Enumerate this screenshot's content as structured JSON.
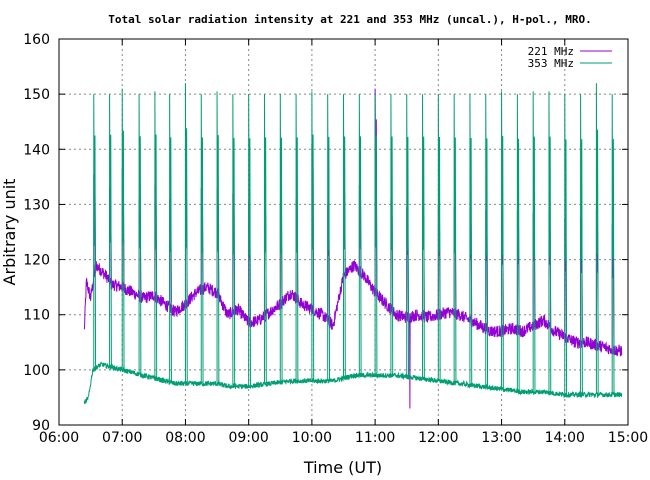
{
  "chart_data": {
    "type": "line",
    "title": "Total solar radiation intensity at 221 and 353 MHz (uncal.), H-pol., MRO.",
    "xlabel": "Time (UT)",
    "ylabel": "Arbitrary unit",
    "xlim": [
      "06:00",
      "15:00"
    ],
    "ylim": [
      90,
      160
    ],
    "xticks": [
      "06:00",
      "07:00",
      "08:00",
      "09:00",
      "10:00",
      "11:00",
      "12:00",
      "13:00",
      "14:00",
      "15:00"
    ],
    "yticks": [
      90,
      100,
      110,
      120,
      130,
      140,
      150,
      160
    ],
    "grid": true,
    "legend_position": "top-right",
    "series": [
      {
        "name": "221 MHz",
        "color": "#9400d3",
        "start": "06:24",
        "end": "14:54",
        "baseline": [
          [
            "06:24",
            107
          ],
          [
            "06:26",
            116
          ],
          [
            "06:30",
            113
          ],
          [
            "06:35",
            119
          ],
          [
            "06:40",
            118
          ],
          [
            "06:45",
            117
          ],
          [
            "06:50",
            115.5
          ],
          [
            "07:00",
            115
          ],
          [
            "07:10",
            114
          ],
          [
            "07:20",
            113
          ],
          [
            "07:30",
            113.5
          ],
          [
            "07:40",
            112
          ],
          [
            "07:50",
            110.5
          ],
          [
            "08:00",
            112
          ],
          [
            "08:10",
            114
          ],
          [
            "08:20",
            115
          ],
          [
            "08:30",
            114
          ],
          [
            "08:40",
            110
          ],
          [
            "08:50",
            111
          ],
          [
            "09:00",
            108.5
          ],
          [
            "09:10",
            109
          ],
          [
            "09:20",
            110.5
          ],
          [
            "09:30",
            112
          ],
          [
            "09:40",
            114
          ],
          [
            "09:50",
            112
          ],
          [
            "10:00",
            111
          ],
          [
            "10:10",
            110
          ],
          [
            "10:20",
            108
          ],
          [
            "10:30",
            117
          ],
          [
            "10:40",
            119
          ],
          [
            "10:50",
            117
          ],
          [
            "11:00",
            114
          ],
          [
            "11:10",
            112
          ],
          [
            "11:20",
            110
          ],
          [
            "11:30",
            109.5
          ],
          [
            "11:40",
            110
          ],
          [
            "11:50",
            109.5
          ],
          [
            "12:00",
            110
          ],
          [
            "12:10",
            110.5
          ],
          [
            "12:20",
            110
          ],
          [
            "12:30",
            109
          ],
          [
            "12:40",
            108
          ],
          [
            "12:50",
            107
          ],
          [
            "13:00",
            107
          ],
          [
            "13:10",
            107.5
          ],
          [
            "13:20",
            107
          ],
          [
            "13:30",
            108
          ],
          [
            "13:40",
            109
          ],
          [
            "13:50",
            107
          ],
          [
            "14:00",
            106
          ],
          [
            "14:10",
            105
          ],
          [
            "14:20",
            105
          ],
          [
            "14:30",
            104.5
          ],
          [
            "14:40",
            104
          ],
          [
            "14:50",
            103.5
          ],
          [
            "14:54",
            103.5
          ]
        ],
        "dips": [
          [
            "11:33",
            93
          ]
        ],
        "spikes": [
          [
            "06:33",
            135.5
          ],
          [
            "06:48",
            133
          ],
          [
            "07:00",
            136.5
          ],
          [
            "07:16",
            131
          ],
          [
            "07:31",
            133.5
          ],
          [
            "07:45",
            131
          ],
          [
            "08:00",
            134
          ],
          [
            "08:15",
            133
          ],
          [
            "08:30",
            133
          ],
          [
            "08:45",
            132
          ],
          [
            "09:00",
            130.5
          ],
          [
            "09:15",
            131.5
          ],
          [
            "09:30",
            130
          ],
          [
            "09:45",
            131
          ],
          [
            "10:00",
            141
          ],
          [
            "10:15",
            130
          ],
          [
            "10:30",
            134.5
          ],
          [
            "10:45",
            133.5
          ],
          [
            "11:00",
            151
          ],
          [
            "11:15",
            131
          ],
          [
            "11:30",
            129.5
          ],
          [
            "11:45",
            131
          ],
          [
            "12:00",
            130
          ],
          [
            "12:15",
            129.5
          ],
          [
            "12:30",
            129.5
          ],
          [
            "12:45",
            129
          ],
          [
            "13:00",
            128.5
          ],
          [
            "13:15",
            129
          ],
          [
            "13:30",
            128.5
          ],
          [
            "13:45",
            128.5
          ],
          [
            "14:00",
            127.5
          ],
          [
            "14:15",
            127.5
          ],
          [
            "14:30",
            129
          ],
          [
            "14:45",
            126.5
          ]
        ]
      },
      {
        "name": "353 MHz",
        "color": "#009e73",
        "start": "06:24",
        "end": "14:54",
        "baseline": [
          [
            "06:24",
            94
          ],
          [
            "06:28",
            95
          ],
          [
            "06:32",
            100
          ],
          [
            "06:40",
            101
          ],
          [
            "06:50",
            100.5
          ],
          [
            "07:00",
            100
          ],
          [
            "07:10",
            99.5
          ],
          [
            "07:20",
            99
          ],
          [
            "07:30",
            98.5
          ],
          [
            "07:40",
            98
          ],
          [
            "07:50",
            97.5
          ],
          [
            "08:00",
            97.5
          ],
          [
            "08:10",
            97.5
          ],
          [
            "08:20",
            97.5
          ],
          [
            "08:30",
            97.5
          ],
          [
            "08:40",
            97
          ],
          [
            "08:50",
            97
          ],
          [
            "09:00",
            97
          ],
          [
            "09:20",
            97.5
          ],
          [
            "09:40",
            98
          ],
          [
            "10:00",
            98
          ],
          [
            "10:20",
            98
          ],
          [
            "10:40",
            99
          ],
          [
            "11:00",
            99
          ],
          [
            "11:20",
            99
          ],
          [
            "11:40",
            98.5
          ],
          [
            "12:00",
            98
          ],
          [
            "12:20",
            97.5
          ],
          [
            "12:40",
            97
          ],
          [
            "13:00",
            96.5
          ],
          [
            "13:20",
            96
          ],
          [
            "13:40",
            96
          ],
          [
            "14:00",
            95.5
          ],
          [
            "14:20",
            95.5
          ],
          [
            "14:40",
            95.5
          ],
          [
            "14:54",
            95.5
          ]
        ],
        "spikes": [
          [
            "06:33",
            150
          ],
          [
            "06:48",
            150
          ],
          [
            "07:00",
            151
          ],
          [
            "07:16",
            150
          ],
          [
            "07:31",
            150.5
          ],
          [
            "07:45",
            150
          ],
          [
            "08:00",
            152
          ],
          [
            "08:15",
            150
          ],
          [
            "08:30",
            150.5
          ],
          [
            "08:45",
            150
          ],
          [
            "09:00",
            150
          ],
          [
            "09:15",
            150
          ],
          [
            "09:30",
            150
          ],
          [
            "09:45",
            150
          ],
          [
            "10:00",
            150.5
          ],
          [
            "10:15",
            150
          ],
          [
            "10:30",
            150
          ],
          [
            "10:45",
            150
          ],
          [
            "11:00",
            150
          ],
          [
            "11:15",
            150
          ],
          [
            "11:30",
            150
          ],
          [
            "11:45",
            150
          ],
          [
            "12:00",
            150
          ],
          [
            "12:15",
            150
          ],
          [
            "12:30",
            150
          ],
          [
            "12:45",
            150
          ],
          [
            "13:00",
            150.5
          ],
          [
            "13:15",
            150
          ],
          [
            "13:30",
            150.5
          ],
          [
            "13:45",
            150.5
          ],
          [
            "14:00",
            150
          ],
          [
            "14:15",
            150
          ],
          [
            "14:30",
            152
          ],
          [
            "14:45",
            150
          ]
        ]
      }
    ]
  }
}
